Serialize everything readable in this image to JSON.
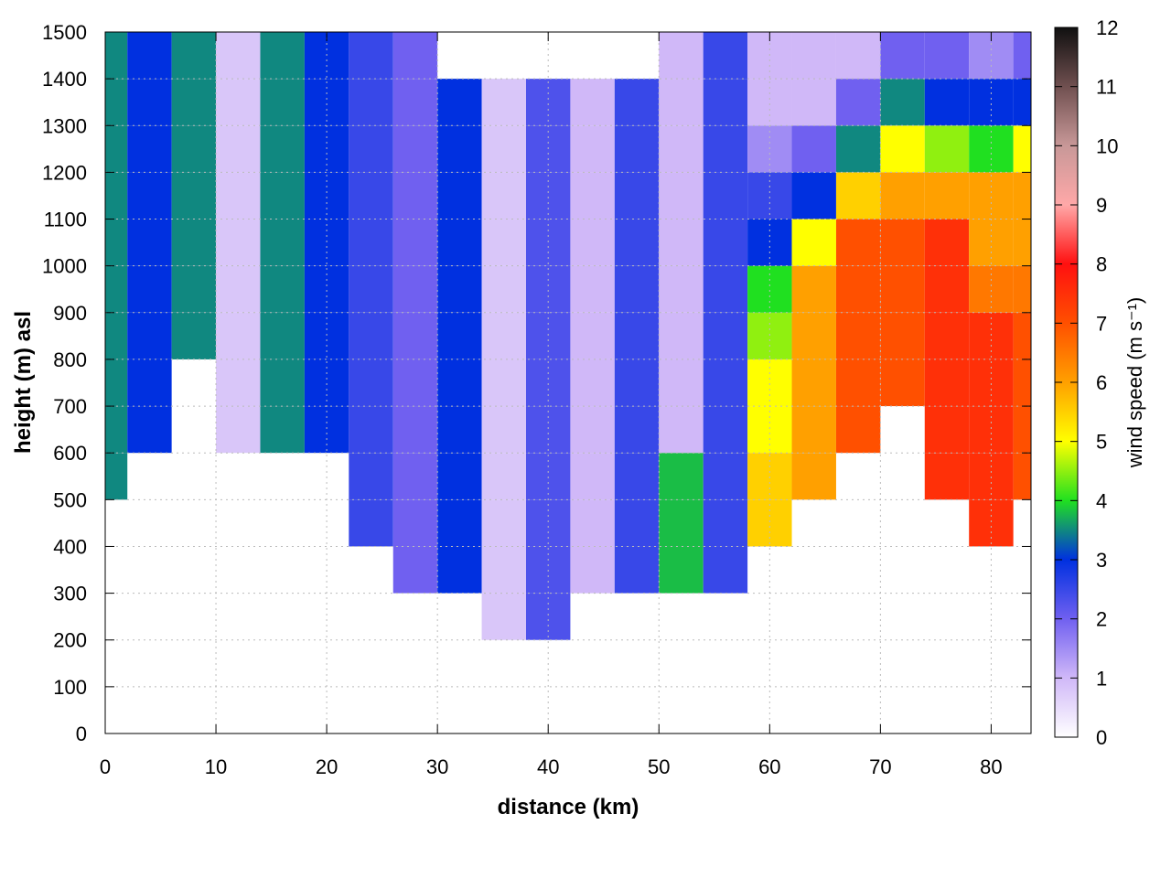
{
  "chart_data": {
    "type": "heatmap",
    "xlabel": "distance (km)",
    "ylabel": "height (m) asl",
    "zlabel": "wind speed (m s⁻¹)",
    "xlim": [
      0,
      83.6
    ],
    "xticks": [
      0,
      10,
      20,
      30,
      40,
      50,
      60,
      70,
      80
    ],
    "ylim": [
      0,
      1500
    ],
    "yticks": [
      0,
      100,
      200,
      300,
      400,
      500,
      600,
      700,
      800,
      900,
      1000,
      1100,
      1200,
      1300,
      1400,
      1500
    ],
    "zlim": [
      0,
      12
    ],
    "zticks": [
      0,
      1,
      2,
      3,
      4,
      5,
      6,
      7,
      8,
      9,
      10,
      11,
      12
    ],
    "grid": true,
    "colormap": [
      "#ffffff",
      "#d0b8f8",
      "#7060f0",
      "#0030e0",
      "#20e020",
      "#ffff00",
      "#ffa000",
      "#ff5000",
      "#ff1010",
      "#ffa8a8",
      "#c89898",
      "#705050",
      "#101010"
    ],
    "x": [
      0,
      4,
      8,
      12,
      16,
      20,
      24,
      28,
      32,
      36,
      40,
      44,
      48,
      52,
      56,
      60,
      64,
      68,
      72,
      76,
      80,
      84
    ],
    "y": [
      50,
      150,
      250,
      350,
      450,
      550,
      650,
      750,
      850,
      950,
      1050,
      1150,
      1250,
      1350,
      1450
    ],
    "z": [
      [
        null,
        null,
        null,
        null,
        null,
        null,
        null,
        null,
        null,
        null,
        null,
        null,
        null,
        null,
        null,
        null,
        null,
        null,
        null,
        null,
        null,
        null
      ],
      [
        null,
        null,
        null,
        null,
        null,
        null,
        null,
        null,
        null,
        null,
        null,
        null,
        null,
        null,
        null,
        null,
        null,
        null,
        null,
        null,
        null,
        null
      ],
      [
        null,
        null,
        null,
        null,
        null,
        null,
        null,
        null,
        null,
        0.8,
        2.3,
        null,
        null,
        null,
        null,
        null,
        null,
        null,
        null,
        null,
        null,
        null
      ],
      [
        null,
        null,
        null,
        null,
        null,
        null,
        null,
        2,
        3,
        0.8,
        2.3,
        1,
        2.5,
        3.8,
        2.5,
        null,
        null,
        null,
        null,
        null,
        null,
        null
      ],
      [
        null,
        null,
        null,
        null,
        null,
        null,
        2.5,
        2,
        3,
        0.8,
        2.3,
        1,
        2.5,
        3.8,
        2.5,
        5.5,
        null,
        null,
        null,
        null,
        7.5,
        null
      ],
      [
        3.5,
        null,
        null,
        null,
        null,
        null,
        2.5,
        2,
        3,
        0.8,
        2.3,
        1,
        2.5,
        3.8,
        2.5,
        5.5,
        6,
        null,
        null,
        7.5,
        7.5,
        7
      ],
      [
        3.5,
        3,
        null,
        0.8,
        3.5,
        3,
        2.5,
        2,
        3,
        0.8,
        2.3,
        1,
        2.5,
        1,
        2.5,
        5,
        6,
        7,
        null,
        7.5,
        7.5,
        7
      ],
      [
        3.5,
        3,
        null,
        0.8,
        3.5,
        3,
        2.5,
        2,
        3,
        0.8,
        2.3,
        1,
        2.5,
        1,
        2.5,
        5,
        6,
        7,
        7,
        7.5,
        7.5,
        7
      ],
      [
        3.5,
        3,
        3.5,
        0.8,
        3.5,
        3,
        2.5,
        2,
        3,
        0.8,
        2.3,
        1,
        2.5,
        1,
        2.5,
        4.5,
        6,
        7,
        7,
        7.5,
        7.5,
        7
      ],
      [
        3.5,
        3,
        3.5,
        0.8,
        3.5,
        3,
        2.5,
        2,
        3,
        0.8,
        2.3,
        1,
        2.5,
        1,
        2.5,
        4,
        6,
        7,
        7,
        7.5,
        6.5,
        6.5
      ],
      [
        3.5,
        3,
        3.5,
        0.8,
        3.5,
        3,
        2.5,
        2,
        3,
        0.8,
        2.3,
        1,
        2.5,
        1,
        2.5,
        3,
        5,
        7,
        7,
        7.5,
        6,
        6
      ],
      [
        3.5,
        3,
        3.5,
        0.8,
        3.5,
        3,
        2.5,
        2,
        3,
        0.8,
        2.3,
        1,
        2.5,
        1,
        2.5,
        2.5,
        3,
        5.5,
        6,
        6,
        6,
        6
      ],
      [
        3.5,
        3,
        3.5,
        0.8,
        3.5,
        3,
        2.5,
        2,
        3,
        0.8,
        2.3,
        1,
        2.5,
        1,
        2.5,
        1.5,
        2,
        3.5,
        5,
        4.5,
        4,
        5
      ],
      [
        3.5,
        3,
        3.5,
        0.8,
        3.5,
        3,
        2.5,
        2,
        3,
        0.8,
        2.3,
        1,
        2.5,
        1,
        2.5,
        1,
        1,
        2,
        3.5,
        3,
        3,
        3
      ],
      [
        3.5,
        3,
        3.5,
        0.8,
        3.5,
        3,
        2.5,
        2,
        null,
        null,
        null,
        null,
        null,
        1,
        2.5,
        1,
        1,
        1,
        2,
        2,
        1.5,
        2
      ]
    ]
  }
}
